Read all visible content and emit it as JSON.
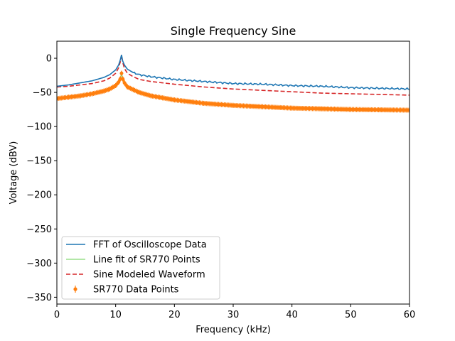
{
  "chart_data": {
    "type": "line",
    "title": "Single Frequency Sine",
    "xlabel": "Frequency (kHz)",
    "ylabel": "Voltage (dBV)",
    "xlim": [
      0,
      60
    ],
    "ylim": [
      -360,
      25
    ],
    "xticks": [
      0,
      10,
      20,
      30,
      40,
      50,
      60
    ],
    "yticks": [
      0,
      -50,
      -100,
      -150,
      -200,
      -250,
      -300,
      -350
    ],
    "grid": false,
    "legend_position": "lower-left",
    "peak_frequency_khz": 11,
    "series": [
      {
        "name": "FFT of Oscilloscope Data",
        "color": "#1f77b4",
        "style": "solid",
        "x": [
          0,
          2,
          4,
          6,
          8,
          9,
          10,
          10.5,
          10.8,
          11,
          11.2,
          11.5,
          12,
          13,
          14,
          16,
          18,
          20,
          25,
          30,
          35,
          40,
          45,
          50,
          55,
          60
        ],
        "y": [
          -41,
          -39,
          -36,
          -33,
          -28,
          -24,
          -17,
          -10,
          -2,
          5,
          -4,
          -10,
          -16,
          -21,
          -24,
          -27,
          -29,
          -31,
          -34,
          -37,
          -38,
          -40,
          -41,
          -43,
          -44,
          -45
        ]
      },
      {
        "name": "Line fit of SR770 Points",
        "color": "#98df8a",
        "style": "solid",
        "x": [
          0,
          2,
          4,
          6,
          8,
          9,
          10,
          10.5,
          10.8,
          11,
          11.2,
          11.5,
          12,
          13,
          14,
          16,
          18,
          20,
          25,
          30,
          35,
          40,
          45,
          50,
          55,
          60
        ],
        "y": [
          -59,
          -57,
          -55,
          -52,
          -48,
          -45,
          -40,
          -35,
          -30,
          -22,
          -30,
          -36,
          -42,
          -46,
          -50,
          -55,
          -58,
          -61,
          -66,
          -69,
          -71,
          -73,
          -74,
          -75,
          -75.5,
          -76
        ]
      },
      {
        "name": "Sine Modeled Waveform",
        "color": "#d62728",
        "style": "dashed",
        "x": [
          0,
          2,
          4,
          6,
          8,
          9,
          10,
          10.5,
          10.8,
          11,
          11.2,
          11.5,
          12,
          13,
          14,
          16,
          18,
          20,
          25,
          30,
          35,
          40,
          45,
          50,
          55,
          60
        ],
        "y": [
          -42,
          -41,
          -39,
          -37,
          -33,
          -29,
          -22,
          -14,
          -5,
          5,
          -6,
          -15,
          -22,
          -27,
          -31,
          -34,
          -36,
          -38,
          -42,
          -45,
          -47,
          -49,
          -51,
          -52,
          -53,
          -54
        ]
      },
      {
        "name": "SR770 Data Points",
        "color": "#ff7f0e",
        "style": "errorbar",
        "x": [
          0,
          2,
          4,
          6,
          8,
          9,
          10,
          10.5,
          10.8,
          11,
          11.2,
          11.5,
          12,
          13,
          14,
          16,
          18,
          20,
          25,
          30,
          35,
          40,
          45,
          50,
          55,
          60
        ],
        "y": [
          -59,
          -57,
          -55,
          -52,
          -48,
          -45,
          -40,
          -35,
          -30,
          -22,
          -30,
          -36,
          -42,
          -46,
          -50,
          -55,
          -58,
          -61,
          -66,
          -69,
          -71,
          -73,
          -74,
          -75,
          -75.5,
          -76
        ]
      }
    ]
  }
}
